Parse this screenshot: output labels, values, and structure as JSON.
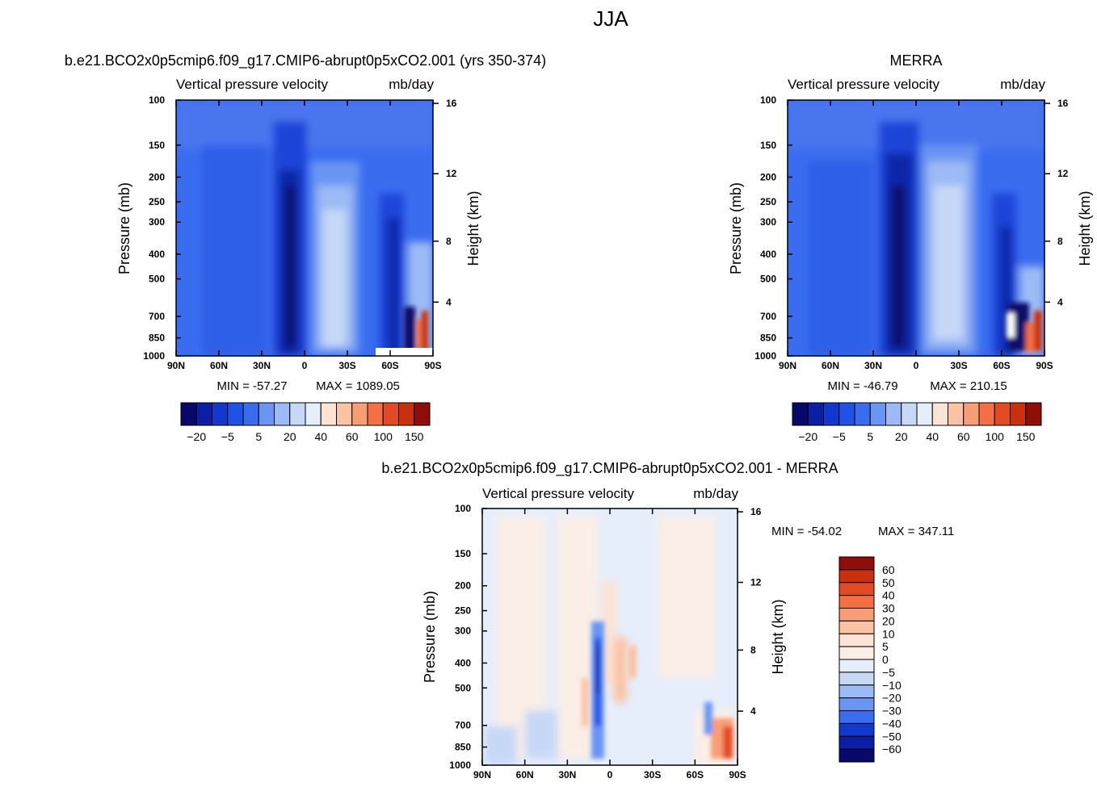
{
  "figure": {
    "super_title": "JJA"
  },
  "chart_data": [
    {
      "id": "model",
      "type": "heatmap",
      "title": "b.e21.BCO2x0p5cmip6.f09_g17.CMIP6-abrupt0p5xCO2.001 (yrs 350-374)",
      "subtitle_left": "Vertical pressure velocity",
      "subtitle_right": "mb/day",
      "ylabel": "Pressure (mb)",
      "ylabel_right": "Height (km)",
      "x_ticks": [
        "90N",
        "60N",
        "30N",
        "0",
        "30S",
        "60S",
        "90S"
      ],
      "y_ticks": [
        100,
        150,
        200,
        250,
        300,
        400,
        500,
        700,
        850,
        1000
      ],
      "y_right_ticks": [
        16,
        12,
        8,
        4
      ],
      "ylim": [
        1000,
        100
      ],
      "xlim": [
        90,
        -90
      ],
      "min_text": "MIN = -57.27",
      "max_text": "MAX = 1089.05",
      "colorbar": {
        "orientation": "horizontal",
        "labels": [
          "-20",
          "-5",
          "5",
          "20",
          "40",
          "60",
          "100",
          "150"
        ],
        "colors": [
          "#08086b",
          "#0a1fa3",
          "#1238d0",
          "#2052e6",
          "#3a6cf0",
          "#6b95f3",
          "#9cbaf5",
          "#c7d8f7",
          "#e6eefb",
          "#fde3d3",
          "#fbc2a4",
          "#f89e76",
          "#f36f45",
          "#e24a24",
          "#c8300f",
          "#8e0f0a"
        ]
      }
    },
    {
      "id": "obs",
      "type": "heatmap",
      "title": "MERRA",
      "subtitle_left": "Vertical pressure velocity",
      "subtitle_right": "mb/day",
      "ylabel": "Pressure (mb)",
      "ylabel_right": "Height (km)",
      "x_ticks": [
        "90N",
        "60N",
        "30N",
        "0",
        "30S",
        "60S",
        "90S"
      ],
      "y_ticks": [
        100,
        150,
        200,
        250,
        300,
        400,
        500,
        700,
        850,
        1000
      ],
      "y_right_ticks": [
        16,
        12,
        8,
        4
      ],
      "ylim": [
        1000,
        100
      ],
      "xlim": [
        90,
        -90
      ],
      "min_text": "MIN = -46.79",
      "max_text": "MAX = 210.15",
      "colorbar": {
        "orientation": "horizontal",
        "labels": [
          "-20",
          "-5",
          "5",
          "20",
          "40",
          "60",
          "100",
          "150"
        ],
        "colors": [
          "#08086b",
          "#0a1fa3",
          "#1238d0",
          "#2052e6",
          "#3a6cf0",
          "#6b95f3",
          "#9cbaf5",
          "#c7d8f7",
          "#e6eefb",
          "#fde3d3",
          "#fbc2a4",
          "#f89e76",
          "#f36f45",
          "#e24a24",
          "#c8300f",
          "#8e0f0a"
        ]
      }
    },
    {
      "id": "diff",
      "type": "heatmap",
      "title": "b.e21.BCO2x0p5cmip6.f09_g17.CMIP6-abrupt0p5xCO2.001 - MERRA",
      "subtitle_left": "Vertical pressure velocity",
      "subtitle_right": "mb/day",
      "ylabel": "Pressure (mb)",
      "ylabel_right": "Height (km)",
      "x_ticks": [
        "90N",
        "60N",
        "30N",
        "0",
        "30S",
        "60S",
        "90S"
      ],
      "y_ticks": [
        100,
        150,
        200,
        250,
        300,
        400,
        500,
        700,
        850,
        1000
      ],
      "y_right_ticks": [
        16,
        12,
        8,
        4
      ],
      "ylim": [
        1000,
        100
      ],
      "xlim": [
        90,
        -90
      ],
      "min_text": "MIN = -54.02",
      "max_text": "MAX = 347.11",
      "colorbar": {
        "orientation": "vertical",
        "labels": [
          "60",
          "50",
          "40",
          "30",
          "20",
          "10",
          "5",
          "0",
          "-5",
          "-10",
          "-20",
          "-30",
          "-40",
          "-50",
          "-60"
        ],
        "colors": [
          "#8e0f0a",
          "#c8300f",
          "#e24a24",
          "#f36f45",
          "#f89e76",
          "#fbc2a4",
          "#fde3d3",
          "#fbeee6",
          "#e6eefb",
          "#c7d8f7",
          "#9cbaf5",
          "#6b95f3",
          "#3a6cf0",
          "#1238d0",
          "#0a1fa3",
          "#08086b"
        ]
      }
    }
  ]
}
